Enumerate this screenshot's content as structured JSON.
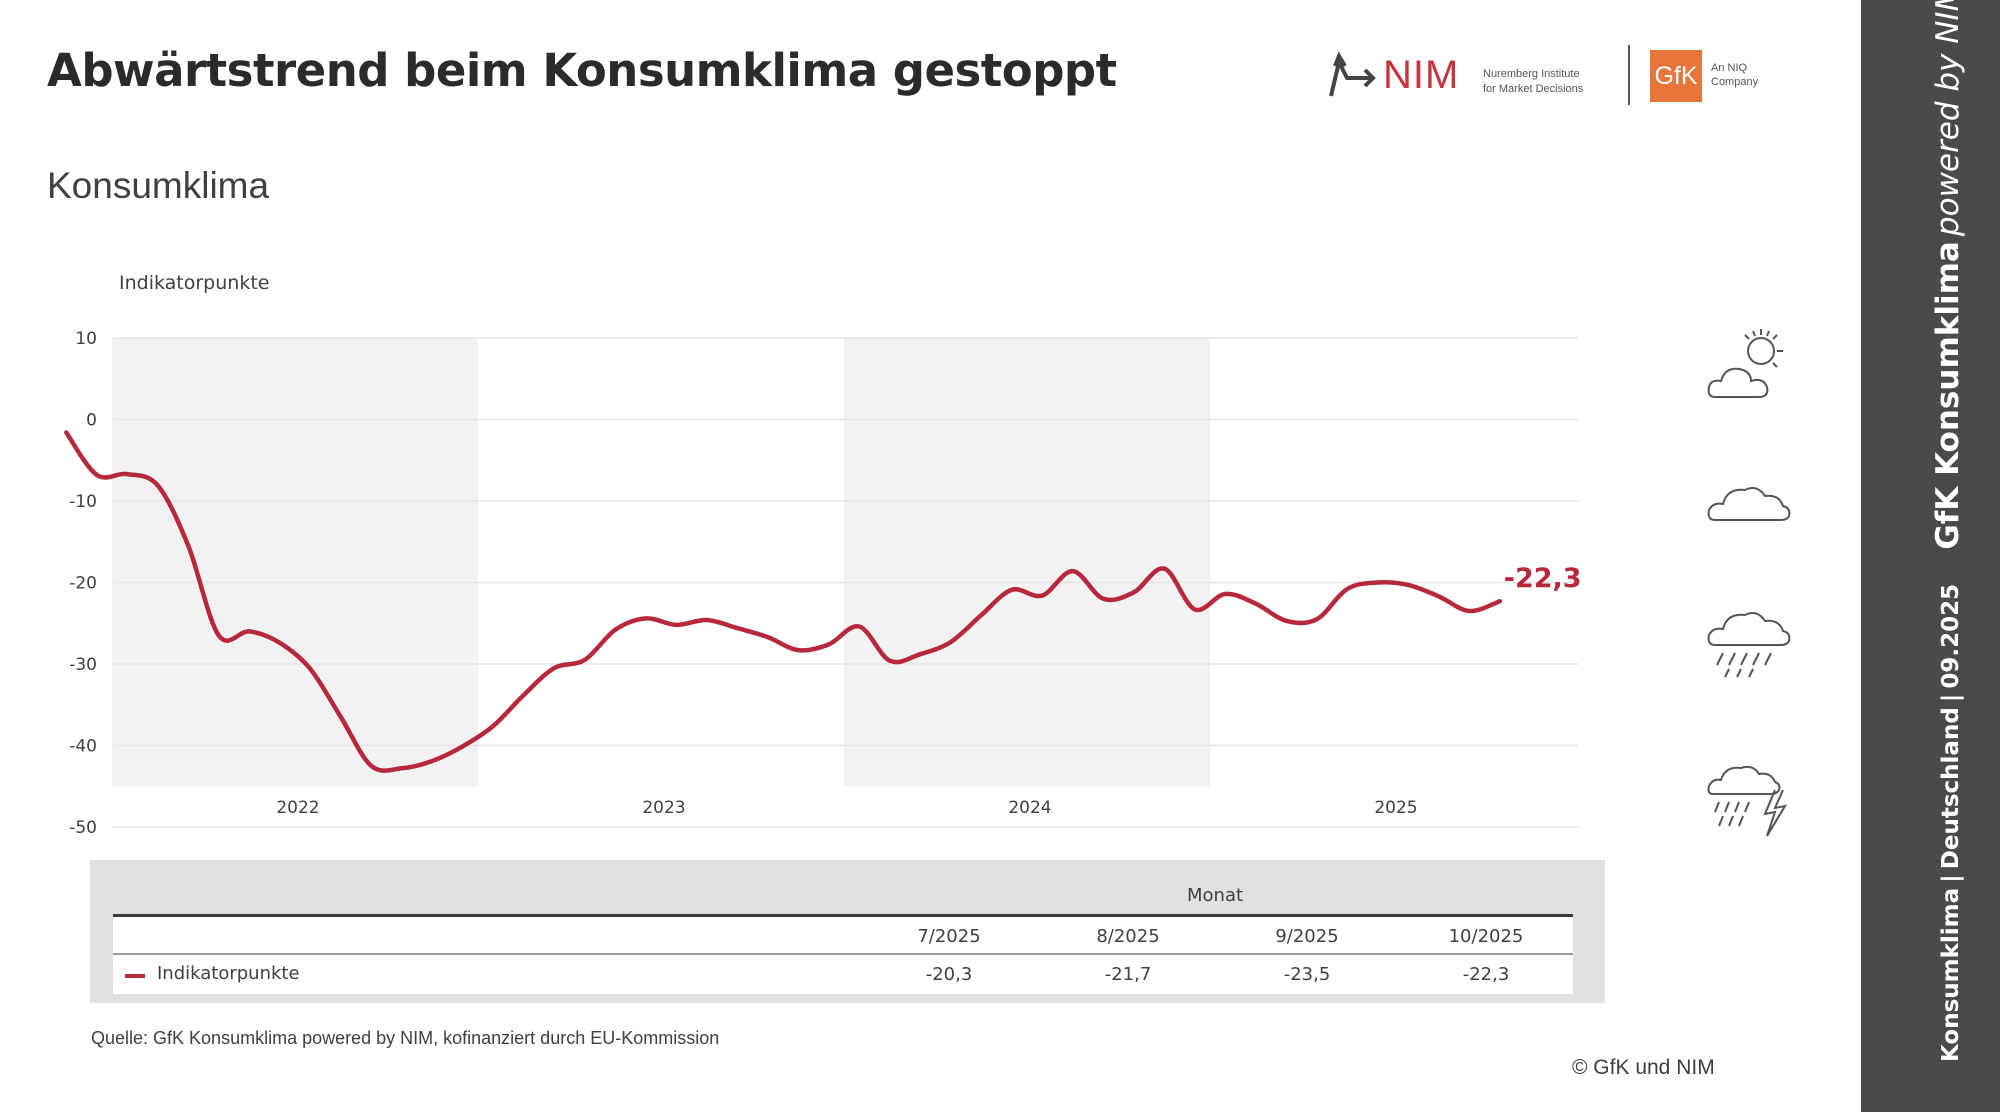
{
  "header": {
    "title": "Abwärtstrend beim Konsumklima gestoppt",
    "subtitle": "Konsumklima"
  },
  "logos": {
    "nim_name": "NIM",
    "nim_line1": "Nuremberg Institute",
    "nim_line2": "for Market Decisions",
    "gfk_name": "GfK",
    "gfk_line1": "An NIQ",
    "gfk_line2": "Company",
    "nim_color": "#c8333f",
    "gfk_color": "#e8753a"
  },
  "chart_data": {
    "type": "line",
    "ylabel": "Indikatorpunkte",
    "ylim": [
      -50,
      10
    ],
    "yticks": [
      10,
      0,
      -10,
      -20,
      -30,
      -40,
      -50
    ],
    "x_year_labels": [
      "2022",
      "2023",
      "2024",
      "2025"
    ],
    "shaded_years": [
      "2022",
      "2024"
    ],
    "grid": "horizontal",
    "series": [
      {
        "color": "#b8283c",
        "x": [
          "11/2021",
          "12/2021",
          "1/2022",
          "2/2022",
          "3/2022",
          "4/2022",
          "5/2022",
          "6/2022",
          "7/2022",
          "8/2022",
          "9/2022",
          "10/2022",
          "11/2022",
          "12/2022",
          "1/2023",
          "2/2023",
          "3/2023",
          "4/2023",
          "5/2023",
          "6/2023",
          "7/2023",
          "8/2023",
          "9/2023",
          "10/2023",
          "11/2023",
          "12/2023",
          "1/2024",
          "2/2024",
          "3/2024",
          "4/2024",
          "5/2024",
          "6/2024",
          "7/2024",
          "8/2024",
          "9/2024",
          "10/2024",
          "11/2024",
          "12/2024",
          "1/2025",
          "2/2025",
          "3/2025",
          "4/2025",
          "5/2025",
          "6/2025",
          "7/2025",
          "8/2025",
          "9/2025",
          "10/2025"
        ],
        "values": [
          -1.6,
          -6.8,
          -6.7,
          -8.1,
          -15.5,
          -26.5,
          -26.0,
          -27.4,
          -30.6,
          -36.5,
          -42.5,
          -42.8,
          -41.9,
          -40.1,
          -37.6,
          -33.8,
          -30.5,
          -29.5,
          -25.8,
          -24.4,
          -25.2,
          -24.6,
          -25.6,
          -26.7,
          -28.3,
          -27.6,
          -25.4,
          -29.6,
          -28.8,
          -27.3,
          -24.0,
          -20.9,
          -21.6,
          -18.6,
          -22.0,
          -21.2,
          -18.3,
          -23.3,
          -21.4,
          -22.6,
          -24.7,
          -24.5,
          -20.8,
          -20.0,
          -20.3,
          -21.7,
          -23.5,
          -22.3
        ]
      }
    ],
    "last_value_label": "-22,3"
  },
  "weather_icons": [
    "sun-cloud-icon",
    "cloud-icon",
    "rain-cloud-icon",
    "storm-cloud-icon"
  ],
  "table": {
    "header_label": "Monat",
    "columns": [
      "7/2025",
      "8/2025",
      "9/2025",
      "10/2025"
    ],
    "row_label": "Indikatorpunkte",
    "values": [
      "-20,3",
      "-21,7",
      "-23,5",
      "-22,3"
    ]
  },
  "footer": {
    "source": "Quelle: GfK Konsumklima powered by NIM, kofinanziert durch EU-Kommission",
    "copyright": "© GfK und NIM"
  },
  "side_banner": {
    "part1": "Konsumklima",
    "sep1": "|",
    "part2": "Deutschland",
    "sep2": "|",
    "part3": "09.2025",
    "part4": "GfK Konsumklima",
    "part5": "powered by NIM"
  }
}
